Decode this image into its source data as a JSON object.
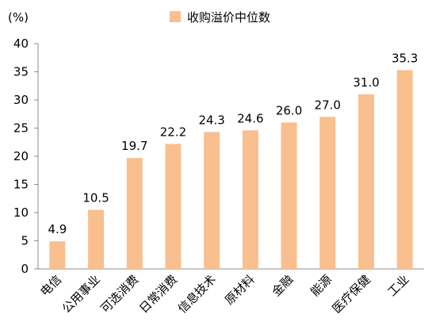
{
  "chart_data": {
    "type": "bar",
    "unit_label": "(%)",
    "categories": [
      "电信",
      "公用事业",
      "可选消费",
      "日常消费",
      "信息技术",
      "原材料",
      "金融",
      "能源",
      "医疗保健",
      "工业"
    ],
    "series": [
      {
        "name": "收购溢价中位数",
        "values": [
          4.9,
          10.5,
          19.7,
          22.2,
          24.3,
          24.6,
          26.0,
          27.0,
          31.0,
          35.3
        ]
      }
    ],
    "value_labels": [
      "4.9",
      "10.5",
      "19.7",
      "22.2",
      "24.3",
      "24.6",
      "26.0",
      "27.0",
      "31.0",
      "35.3"
    ],
    "ylim": [
      0,
      40
    ],
    "yticks": [
      "0",
      "5",
      "10",
      "15",
      "20",
      "25",
      "30",
      "35",
      "40"
    ],
    "grid": false,
    "legend_position": "top-center",
    "bar_color": "#F9BF8F"
  }
}
